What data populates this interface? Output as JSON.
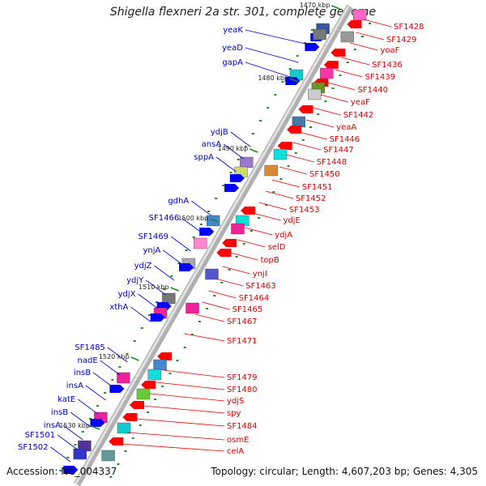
{
  "title": "Shigella flexneri 2a str. 301, complete genome",
  "accession": "Accession: NC_004337",
  "topology": "Topology: circular; Length: 4,607,203 bp; Genes: 4,305",
  "colors": {
    "backbone": "#b3b3b3",
    "left_label": "#0000cc",
    "right_label": "#dd0000",
    "tick": "#1a8a1a",
    "forward_arrow": "#0000ff",
    "reverse_arrow": "#ff0000"
  },
  "kbp_ticks": [
    "1470 kbp",
    "1480 kbp",
    "1490 kbp",
    "1500 kbp",
    "1510 kbp",
    "1520 kbp",
    "1530 kbp"
  ],
  "left_genes": [
    "yeaK",
    "yeaD",
    "gapA",
    "ydjB",
    "ansA",
    "sppA",
    "gdhA",
    "SF1466",
    "SF1469",
    "ynjA",
    "ydjZ",
    "ydjY",
    "ydjX",
    "xthA",
    "SF1485",
    "nadE",
    "insB",
    "insA",
    "katE",
    "insB",
    "insA",
    "SF1501",
    "SF1502"
  ],
  "right_genes": [
    "SF1428",
    "SF1429",
    "yoaF",
    "SF1436",
    "SF1439",
    "SF1440",
    "yeaF",
    "SF1442",
    "yeaA",
    "SF1446",
    "SF1447",
    "SF1448",
    "SF1450",
    "SF1451",
    "SF1452",
    "SF1453",
    "ydjE",
    "ydjA",
    "selD",
    "topB",
    "ynjI",
    "SF1463",
    "SF1464",
    "SF1465",
    "SF1467",
    "SF1471",
    "SF1479",
    "SF1480",
    "ydjS",
    "spy",
    "SF1484",
    "osmE",
    "celA"
  ]
}
